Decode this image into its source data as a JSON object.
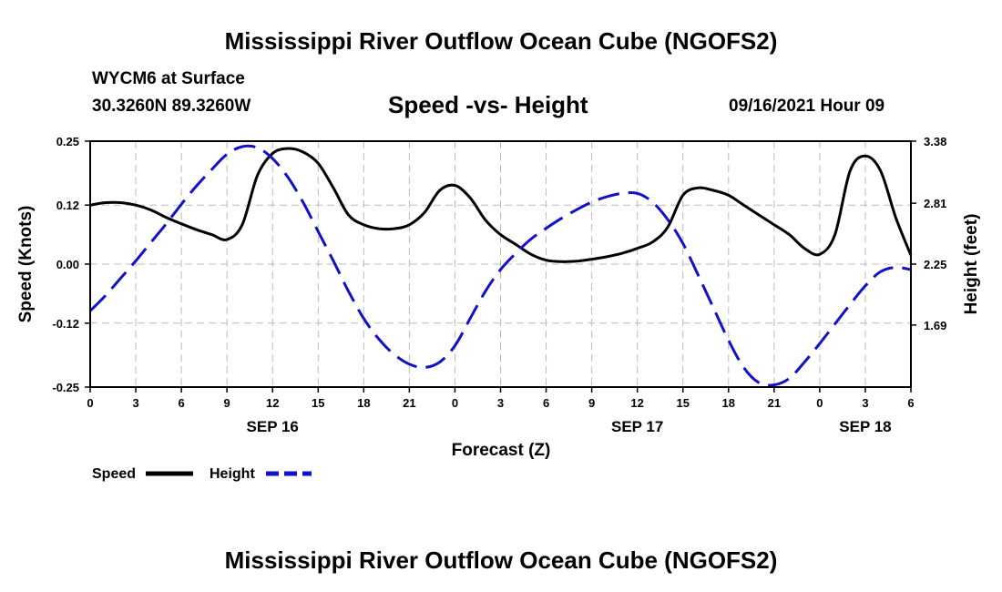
{
  "header": {
    "title": "Mississippi River Outflow Ocean Cube (NGOFS2)",
    "station": "WYCM6 at Surface",
    "coords": "30.3260N  89.3260W",
    "subtitle": "Speed -vs- Height",
    "datetime": "09/16/2021 Hour 09"
  },
  "footer": {
    "title": "Mississippi River Outflow Ocean Cube (NGOFS2)"
  },
  "chart_data": {
    "type": "line",
    "title": "Speed -vs- Height",
    "xlabel": "Forecast (Z)",
    "ylabel_left": "Speed (Knots)",
    "ylabel_right": "Height (feet)",
    "x_range": [
      0,
      54
    ],
    "x_ticks": [
      0,
      3,
      6,
      9,
      12,
      15,
      18,
      21,
      24,
      27,
      30,
      33,
      36,
      39,
      42,
      45,
      48,
      51,
      54
    ],
    "x_tick_labels": [
      "0",
      "3",
      "6",
      "9",
      "12",
      "15",
      "18",
      "21",
      "0",
      "3",
      "6",
      "9",
      "12",
      "15",
      "18",
      "21",
      "0",
      "3",
      "6"
    ],
    "date_labels": [
      {
        "x": 12,
        "label": "SEP 16"
      },
      {
        "x": 36,
        "label": "SEP 17"
      },
      {
        "x": 51,
        "label": "SEP 18"
      }
    ],
    "y_left": {
      "range": [
        -0.25,
        0.25
      ],
      "ticks": [
        -0.25,
        -0.12,
        0.0,
        0.12,
        0.25
      ],
      "tick_labels": [
        "-0.25",
        "-0.12",
        "0.00",
        "0.12",
        "0.25"
      ]
    },
    "y_right": {
      "range": [
        1.12,
        3.38
      ],
      "ticks": [
        1.69,
        2.25,
        2.81,
        3.38
      ],
      "tick_labels": [
        "1.69",
        "2.25",
        "2.81",
        "3.38"
      ]
    },
    "grid": true,
    "series": [
      {
        "name": "Speed",
        "axis": "left",
        "color": "#000000",
        "style": "solid",
        "x": [
          0,
          1,
          2,
          3,
          4,
          5,
          6,
          7,
          8,
          9,
          10,
          11,
          12,
          13,
          14,
          15,
          16,
          17,
          18,
          19,
          20,
          21,
          22,
          23,
          24,
          25,
          26,
          27,
          28,
          29,
          30,
          31,
          32,
          33,
          34,
          35,
          36,
          37,
          38,
          39,
          40,
          41,
          42,
          43,
          44,
          45,
          46,
          47,
          48,
          49,
          50,
          51,
          52,
          53,
          54
        ],
        "values": [
          0.12,
          0.125,
          0.125,
          0.12,
          0.11,
          0.095,
          0.082,
          0.07,
          0.06,
          0.05,
          0.08,
          0.18,
          0.225,
          0.235,
          0.228,
          0.205,
          0.155,
          0.1,
          0.08,
          0.072,
          0.072,
          0.08,
          0.105,
          0.15,
          0.16,
          0.135,
          0.09,
          0.06,
          0.04,
          0.02,
          0.008,
          0.005,
          0.006,
          0.01,
          0.015,
          0.022,
          0.032,
          0.045,
          0.075,
          0.14,
          0.155,
          0.15,
          0.14,
          0.12,
          0.1,
          0.08,
          0.06,
          0.032,
          0.02,
          0.06,
          0.19,
          0.22,
          0.19,
          0.095,
          0.018
        ]
      },
      {
        "name": "Height",
        "axis": "right",
        "color": "#1111cc",
        "style": "dashed",
        "x": [
          0,
          1,
          2,
          3,
          4,
          5,
          6,
          7,
          8,
          9,
          10,
          11,
          12,
          13,
          14,
          15,
          16,
          17,
          18,
          19,
          20,
          21,
          22,
          23,
          24,
          25,
          26,
          27,
          28,
          29,
          30,
          31,
          32,
          33,
          34,
          35,
          36,
          37,
          38,
          39,
          40,
          41,
          42,
          43,
          44,
          45,
          46,
          47,
          48,
          49,
          50,
          51,
          52,
          53,
          54
        ],
        "values": [
          1.82,
          1.96,
          2.12,
          2.28,
          2.45,
          2.62,
          2.8,
          2.97,
          3.12,
          3.26,
          3.33,
          3.32,
          3.22,
          3.05,
          2.82,
          2.55,
          2.28,
          2.0,
          1.75,
          1.56,
          1.42,
          1.33,
          1.3,
          1.35,
          1.5,
          1.75,
          2.0,
          2.2,
          2.35,
          2.48,
          2.58,
          2.67,
          2.75,
          2.82,
          2.87,
          2.9,
          2.9,
          2.82,
          2.66,
          2.44,
          2.15,
          1.85,
          1.55,
          1.3,
          1.16,
          1.14,
          1.2,
          1.35,
          1.52,
          1.7,
          1.88,
          2.05,
          2.18,
          2.22,
          2.2
        ]
      }
    ],
    "legend": [
      {
        "name": "Speed",
        "color": "#000000",
        "style": "solid"
      },
      {
        "name": "Height",
        "color": "#1111cc",
        "style": "dashed"
      }
    ]
  }
}
